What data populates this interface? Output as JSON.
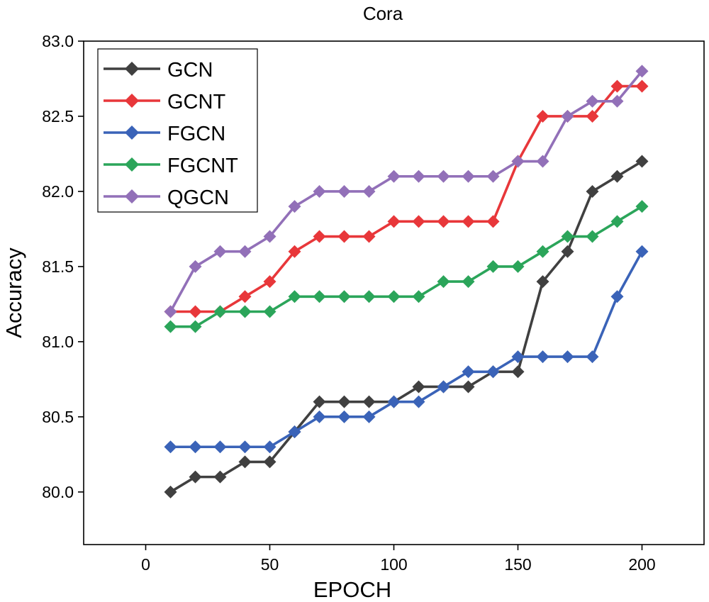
{
  "chart_data": {
    "type": "line",
    "title": "Cora",
    "xlabel": "EPOCH",
    "ylabel": "Accuracy",
    "xlim": [
      -25,
      225
    ],
    "ylim": [
      79.65,
      83.0
    ],
    "xticks": [
      0,
      50,
      100,
      150,
      200
    ],
    "yticks": [
      80.0,
      80.5,
      81.0,
      81.5,
      82.0,
      82.5,
      83.0
    ],
    "grid": false,
    "legend_position": "top-left",
    "x": [
      10,
      20,
      30,
      40,
      50,
      60,
      70,
      80,
      90,
      100,
      110,
      120,
      130,
      140,
      150,
      160,
      170,
      180,
      190,
      200
    ],
    "series": [
      {
        "name": "GCN",
        "color": "#404040",
        "values": [
          80.0,
          80.1,
          80.1,
          80.2,
          80.2,
          80.4,
          80.6,
          80.6,
          80.6,
          80.6,
          80.7,
          80.7,
          80.7,
          80.8,
          80.8,
          81.4,
          81.6,
          82.0,
          82.1,
          82.2
        ]
      },
      {
        "name": "GCNT",
        "color": "#e8373a",
        "values": [
          81.2,
          81.2,
          81.2,
          81.3,
          81.4,
          81.6,
          81.7,
          81.7,
          81.7,
          81.8,
          81.8,
          81.8,
          81.8,
          81.8,
          82.2,
          82.5,
          82.5,
          82.5,
          82.7,
          82.7
        ]
      },
      {
        "name": "FGCN",
        "color": "#3a63b8",
        "values": [
          80.3,
          80.3,
          80.3,
          80.3,
          80.3,
          80.4,
          80.5,
          80.5,
          80.5,
          80.6,
          80.6,
          80.7,
          80.8,
          80.8,
          80.9,
          80.9,
          80.9,
          80.9,
          81.3,
          81.6
        ]
      },
      {
        "name": "FGCNT",
        "color": "#2ba55a",
        "values": [
          81.1,
          81.1,
          81.2,
          81.2,
          81.2,
          81.3,
          81.3,
          81.3,
          81.3,
          81.3,
          81.3,
          81.4,
          81.4,
          81.5,
          81.5,
          81.6,
          81.7,
          81.7,
          81.8,
          81.9
        ]
      },
      {
        "name": "QGCN",
        "color": "#9270b8",
        "values": [
          81.2,
          81.5,
          81.6,
          81.6,
          81.7,
          81.9,
          82.0,
          82.0,
          82.0,
          82.1,
          82.1,
          82.1,
          82.1,
          82.1,
          82.2,
          82.2,
          82.5,
          82.6,
          82.6,
          82.8
        ]
      }
    ]
  }
}
